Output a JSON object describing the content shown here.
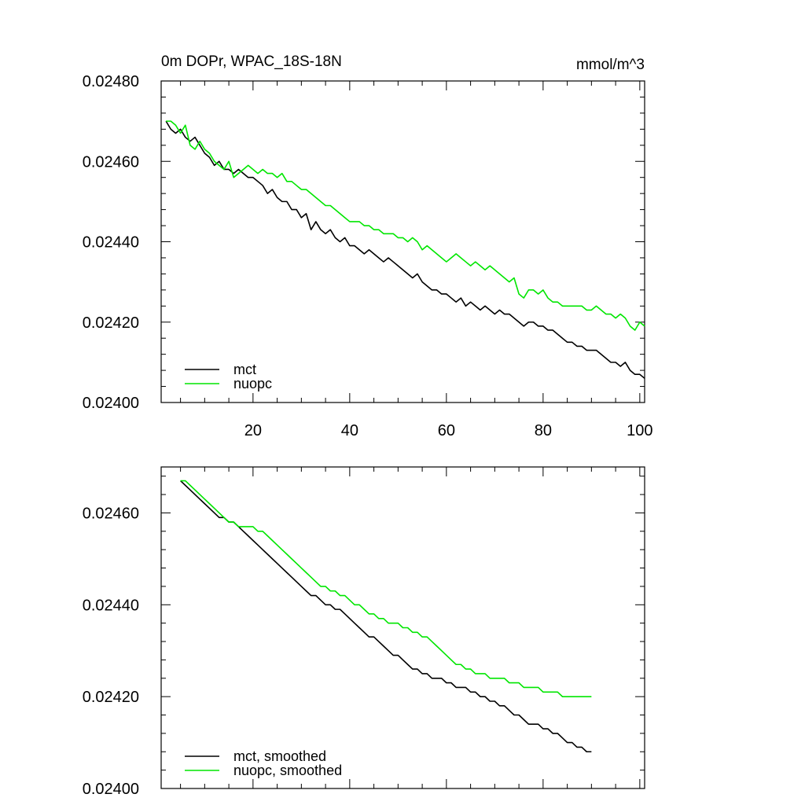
{
  "chart_data": [
    {
      "type": "line",
      "title": "0m DOPr, WPAC_18S-18N",
      "units": "mmol/m^3",
      "xlabel": "",
      "ylabel": "",
      "xlim": [
        1,
        101
      ],
      "ylim": [
        0.024,
        0.0248
      ],
      "xticks": [
        20,
        40,
        60,
        80,
        100
      ],
      "xtick_labels": [
        "20",
        "40",
        "60",
        "80",
        "100"
      ],
      "yticks": [
        0.024,
        0.0242,
        0.0244,
        0.0246,
        0.0248
      ],
      "ytick_labels": [
        "0.02400",
        "0.02420",
        "0.02440",
        "0.02460",
        "0.02480"
      ],
      "legend_position": "bottom-left",
      "grid": false,
      "series": [
        {
          "name": "mct",
          "color": "#000000",
          "x_start": 2,
          "values": [
            0.0247,
            0.02468,
            0.02467,
            0.02468,
            0.02466,
            0.02465,
            0.02466,
            0.02464,
            0.02462,
            0.02461,
            0.02459,
            0.0246,
            0.02458,
            0.02458,
            0.02457,
            0.02458,
            0.02457,
            0.02456,
            0.02456,
            0.02455,
            0.02454,
            0.02452,
            0.02453,
            0.02451,
            0.0245,
            0.0245,
            0.02448,
            0.02448,
            0.02446,
            0.02447,
            0.02443,
            0.02445,
            0.02443,
            0.02442,
            0.02443,
            0.02441,
            0.0244,
            0.02441,
            0.02439,
            0.02439,
            0.02438,
            0.02437,
            0.02438,
            0.02437,
            0.02436,
            0.02435,
            0.02436,
            0.02435,
            0.02434,
            0.02433,
            0.02432,
            0.02431,
            0.02432,
            0.0243,
            0.02429,
            0.02428,
            0.02428,
            0.02427,
            0.02427,
            0.02426,
            0.02425,
            0.02426,
            0.02424,
            0.02425,
            0.02424,
            0.02423,
            0.02424,
            0.02423,
            0.02422,
            0.02423,
            0.02422,
            0.02422,
            0.02421,
            0.0242,
            0.02419,
            0.0242,
            0.0242,
            0.02419,
            0.02419,
            0.02418,
            0.02418,
            0.02417,
            0.02416,
            0.02415,
            0.02415,
            0.02414,
            0.02414,
            0.02413,
            0.02413,
            0.02413,
            0.02412,
            0.02411,
            0.0241,
            0.0241,
            0.02409,
            0.0241,
            0.02408,
            0.02407,
            0.02407,
            0.02406
          ]
        },
        {
          "name": "nuopc",
          "color": "#00e600",
          "x_start": 2,
          "values": [
            0.0247,
            0.0247,
            0.02469,
            0.02467,
            0.02469,
            0.02464,
            0.02463,
            0.02465,
            0.02463,
            0.02462,
            0.0246,
            0.02459,
            0.02458,
            0.0246,
            0.02456,
            0.02457,
            0.02458,
            0.02459,
            0.02458,
            0.02457,
            0.02458,
            0.02457,
            0.02457,
            0.02456,
            0.02457,
            0.02455,
            0.02455,
            0.02454,
            0.02453,
            0.02453,
            0.02452,
            0.02451,
            0.0245,
            0.02449,
            0.02449,
            0.02448,
            0.02447,
            0.02446,
            0.02445,
            0.02445,
            0.02445,
            0.02444,
            0.02444,
            0.02443,
            0.02443,
            0.02442,
            0.02442,
            0.02442,
            0.02441,
            0.02441,
            0.0244,
            0.02441,
            0.0244,
            0.02438,
            0.02439,
            0.02438,
            0.02437,
            0.02436,
            0.02435,
            0.02436,
            0.02437,
            0.02436,
            0.02435,
            0.02434,
            0.02435,
            0.02434,
            0.02433,
            0.02434,
            0.02433,
            0.02432,
            0.02431,
            0.0243,
            0.02431,
            0.02427,
            0.02426,
            0.02428,
            0.02428,
            0.02427,
            0.02428,
            0.02426,
            0.02425,
            0.02425,
            0.02424,
            0.02424,
            0.02424,
            0.02424,
            0.02424,
            0.02423,
            0.02423,
            0.02424,
            0.02423,
            0.02422,
            0.02422,
            0.02421,
            0.02422,
            0.02421,
            0.02419,
            0.02418,
            0.0242,
            0.02419
          ]
        }
      ]
    },
    {
      "type": "line",
      "title": "",
      "xlabel": "",
      "ylabel": "",
      "xlim": [
        1,
        101
      ],
      "ylim": [
        0.024,
        0.0247
      ],
      "xticks": [
        20,
        40,
        60,
        80,
        100
      ],
      "yticks": [
        0.024,
        0.0242,
        0.0244,
        0.0246
      ],
      "ytick_labels": [
        "0.02400",
        "0.02420",
        "0.02440",
        "0.02460"
      ],
      "legend_position": "bottom-left",
      "grid": false,
      "series": [
        {
          "name": "mct, smoothed",
          "color": "#000000",
          "x_start": 5,
          "values": [
            0.02467,
            0.02466,
            0.02465,
            0.02464,
            0.02463,
            0.02462,
            0.02461,
            0.0246,
            0.02459,
            0.02459,
            0.02458,
            0.02458,
            0.02457,
            0.02456,
            0.02455,
            0.02454,
            0.02453,
            0.02452,
            0.02451,
            0.0245,
            0.02449,
            0.02448,
            0.02447,
            0.02446,
            0.02445,
            0.02444,
            0.02443,
            0.02442,
            0.02442,
            0.02441,
            0.0244,
            0.0244,
            0.02439,
            0.02439,
            0.02438,
            0.02437,
            0.02436,
            0.02435,
            0.02434,
            0.02433,
            0.02433,
            0.02432,
            0.02431,
            0.0243,
            0.02429,
            0.02429,
            0.02428,
            0.02427,
            0.02426,
            0.02426,
            0.02425,
            0.02425,
            0.02424,
            0.02424,
            0.02424,
            0.02423,
            0.02423,
            0.02422,
            0.02422,
            0.02422,
            0.02421,
            0.02421,
            0.0242,
            0.0242,
            0.02419,
            0.02419,
            0.02418,
            0.02418,
            0.02417,
            0.02416,
            0.02416,
            0.02415,
            0.02414,
            0.02414,
            0.02414,
            0.02413,
            0.02413,
            0.02412,
            0.02412,
            0.02411,
            0.0241,
            0.0241,
            0.02409,
            0.02409,
            0.02408,
            0.02408
          ]
        },
        {
          "name": "nuopc, smoothed",
          "color": "#00e600",
          "x_start": 5,
          "values": [
            0.02467,
            0.02467,
            0.02466,
            0.02465,
            0.02464,
            0.02463,
            0.02462,
            0.02461,
            0.0246,
            0.02459,
            0.02458,
            0.02458,
            0.02457,
            0.02457,
            0.02457,
            0.02457,
            0.02456,
            0.02456,
            0.02455,
            0.02454,
            0.02453,
            0.02452,
            0.02451,
            0.0245,
            0.02449,
            0.02448,
            0.02447,
            0.02446,
            0.02445,
            0.02444,
            0.02444,
            0.02443,
            0.02443,
            0.02442,
            0.02442,
            0.02441,
            0.0244,
            0.0244,
            0.02439,
            0.02438,
            0.02438,
            0.02437,
            0.02437,
            0.02436,
            0.02436,
            0.02436,
            0.02435,
            0.02435,
            0.02434,
            0.02434,
            0.02433,
            0.02433,
            0.02432,
            0.02431,
            0.0243,
            0.02429,
            0.02428,
            0.02427,
            0.02427,
            0.02426,
            0.02426,
            0.02425,
            0.02425,
            0.02425,
            0.02424,
            0.02424,
            0.02424,
            0.02424,
            0.02423,
            0.02423,
            0.02423,
            0.02422,
            0.02422,
            0.02422,
            0.02422,
            0.02421,
            0.02421,
            0.02421,
            0.02421,
            0.0242,
            0.0242,
            0.0242,
            0.0242,
            0.0242,
            0.0242,
            0.0242
          ]
        }
      ]
    }
  ]
}
